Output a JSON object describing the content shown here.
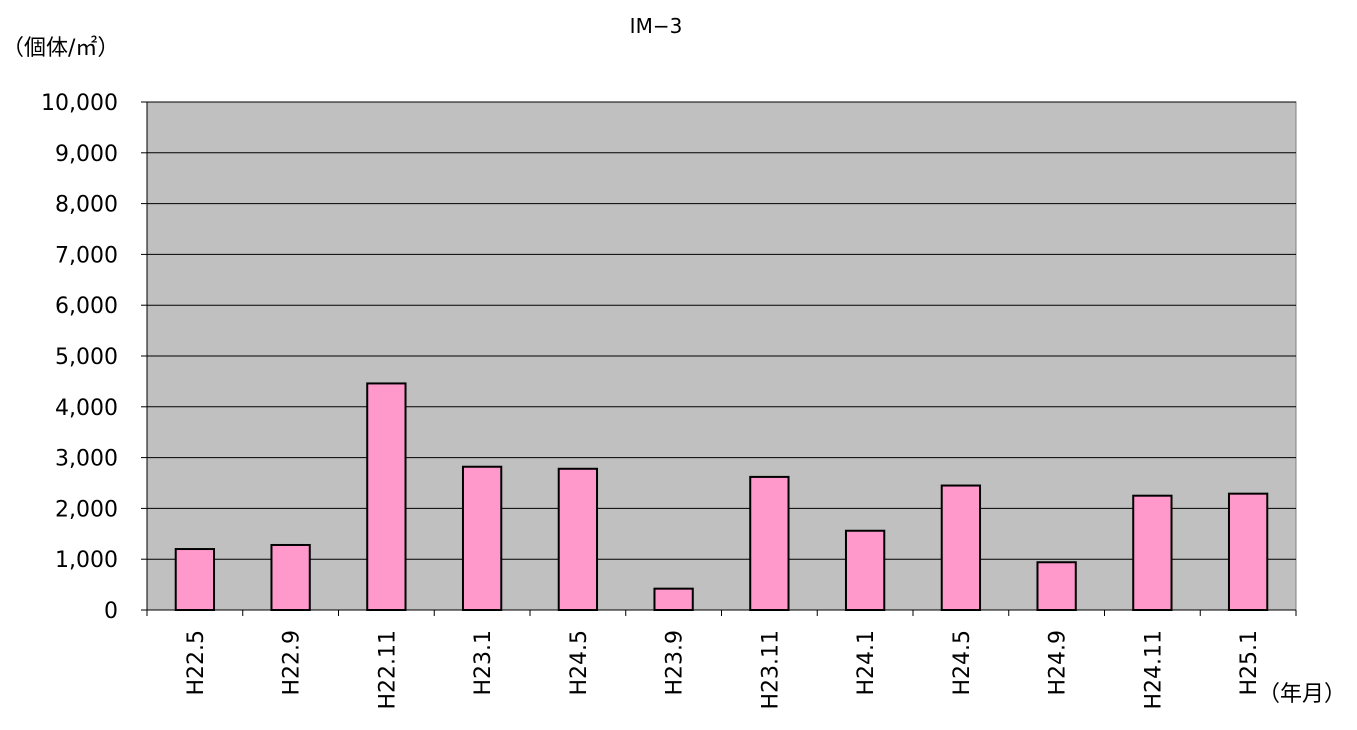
{
  "chart_data": {
    "type": "bar",
    "title": "IM−3",
    "ylabel": "（個体/㎡）",
    "xlabel": "（年月）",
    "ylim": [
      0,
      10000
    ],
    "yticks": [
      "0",
      "1,000",
      "2,000",
      "3,000",
      "4,000",
      "5,000",
      "6,000",
      "7,000",
      "8,000",
      "9,000",
      "10,000"
    ],
    "ytick_values": [
      0,
      1000,
      2000,
      3000,
      4000,
      5000,
      6000,
      7000,
      8000,
      9000,
      10000
    ],
    "categories": [
      "H22.5",
      "H22.9",
      "H22.11",
      "H23.1",
      "H24.5",
      "H23.9",
      "H23.11",
      "H24.1",
      "H24.5",
      "H24.9",
      "H24.11",
      "H25.1"
    ],
    "values": [
      1200,
      1280,
      4460,
      2820,
      2780,
      420,
      2620,
      1560,
      2450,
      940,
      2250,
      2290
    ],
    "grid": true,
    "legend": false,
    "colors": {
      "bar": "#ff99cc",
      "plot_bg": "#c0c0c0",
      "grid": "#000000"
    }
  }
}
